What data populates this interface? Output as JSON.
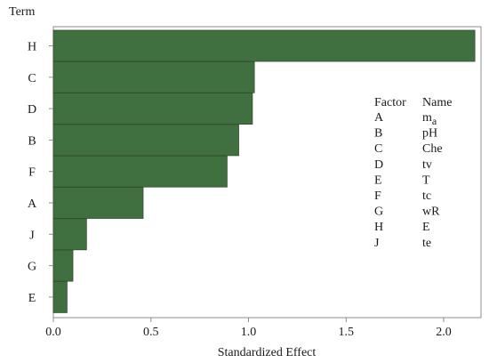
{
  "chart_data": {
    "type": "bar",
    "orientation": "horizontal",
    "ylabel": "Term",
    "xlabel": "Standardized Effect",
    "categories": [
      "H",
      "C",
      "D",
      "B",
      "F",
      "A",
      "J",
      "G",
      "E"
    ],
    "values": [
      2.16,
      1.03,
      1.02,
      0.95,
      0.89,
      0.46,
      0.17,
      0.1,
      0.07
    ],
    "xlim": [
      0,
      2.2
    ],
    "xticks": [
      "0.0",
      "0.5",
      "1.0",
      "1.5",
      "2.0"
    ],
    "grid": false,
    "bar_color": "#40703f",
    "legend": {
      "header_factor": "Factor",
      "header_name": "Name",
      "rows": [
        {
          "factor": "A",
          "name": "m",
          "sub": "a"
        },
        {
          "factor": "B",
          "name": "pH",
          "sub": ""
        },
        {
          "factor": "C",
          "name": "Che",
          "sub": ""
        },
        {
          "factor": "D",
          "name": "tv",
          "sub": ""
        },
        {
          "factor": "E",
          "name": "T",
          "sub": ""
        },
        {
          "factor": "F",
          "name": "tc",
          "sub": ""
        },
        {
          "factor": "G",
          "name": "wR",
          "sub": ""
        },
        {
          "factor": "H",
          "name": "E",
          "sub": ""
        },
        {
          "factor": "J",
          "name": "te",
          "sub": ""
        }
      ]
    }
  }
}
